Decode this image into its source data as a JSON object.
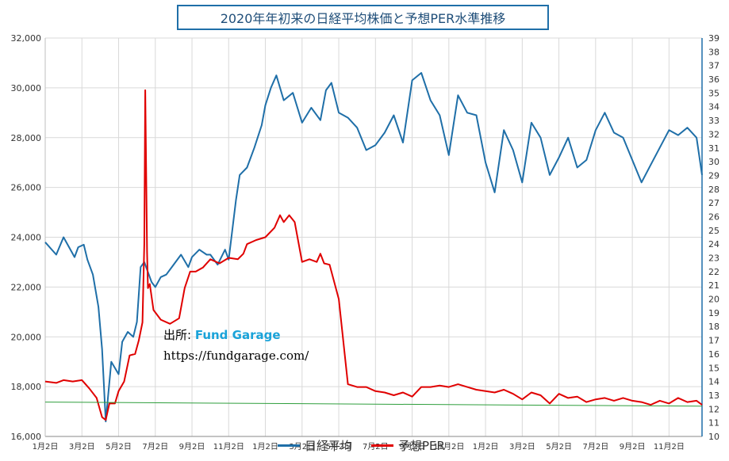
{
  "chart_data": {
    "type": "line",
    "title": "2020年年初来の日経平均株価と予想PER水準推移",
    "colors": {
      "nikkei": "#1f6fa8",
      "per": "#e00000",
      "trend": "#2e9e3c",
      "grid": "#d9d9d9"
    },
    "x_tick_labels": [
      "1月2日",
      "3月2日",
      "5月2日",
      "7月2日",
      "9月2日",
      "11月2日",
      "1月2日",
      "3月2日",
      "5月2日",
      "7月2日",
      "9月2日",
      "11月2日",
      "1月2日",
      "3月2日",
      "5月2日",
      "7月2日",
      "9月2日",
      "11月2日"
    ],
    "y_left": {
      "min": 16000,
      "max": 32000,
      "step": 2000,
      "tick_labels": [
        "16,000",
        "18,000",
        "20,000",
        "22,000",
        "24,000",
        "26,000",
        "28,000",
        "30,000",
        "32,000"
      ]
    },
    "y_right": {
      "min": 10,
      "max": 39,
      "step": 1,
      "tick_labels": [
        "10",
        "11",
        "12",
        "13",
        "14",
        "15",
        "16",
        "17",
        "18",
        "19",
        "20",
        "21",
        "22",
        "23",
        "24",
        "25",
        "26",
        "27",
        "28",
        "29",
        "30",
        "31",
        "32",
        "33",
        "34",
        "35",
        "36",
        "37",
        "38",
        "39"
      ]
    },
    "series": [
      {
        "name": "日経平均",
        "axis": "left",
        "color": "#1f6fa8",
        "x": [
          0,
          0.6,
          1,
          1.3,
          1.6,
          1.8,
          2.1,
          2.3,
          2.6,
          2.9,
          3.1,
          3.3,
          3.6,
          4,
          4.2,
          4.5,
          4.8,
          5,
          5.2,
          5.4,
          5.8,
          6,
          6.3,
          6.6,
          7,
          7.4,
          7.8,
          8,
          8.4,
          8.8,
          9,
          9.4,
          9.8,
          10,
          10.4,
          10.6,
          11,
          11.4,
          11.8,
          12,
          12.3,
          12.6,
          13,
          13.5,
          14,
          14.5,
          15,
          15.3,
          15.6,
          16,
          16.5,
          17,
          17.5,
          18,
          18.5,
          19,
          19.5,
          20,
          20.5,
          21,
          21.5,
          22,
          22.5,
          23,
          23.5,
          24,
          24.5,
          25,
          25.5,
          26,
          26.5,
          27,
          27.5,
          28,
          28.5,
          29,
          29.5,
          30,
          30.5,
          31,
          31.5,
          32,
          32.5,
          33,
          33.5,
          34,
          34.5,
          35,
          35.5,
          35.8
        ],
        "y": [
          23800,
          23300,
          24000,
          23600,
          23200,
          23600,
          23700,
          23100,
          22500,
          21200,
          19500,
          16600,
          19000,
          18500,
          19800,
          20200,
          20000,
          20600,
          22800,
          23000,
          22200,
          22000,
          22400,
          22500,
          22900,
          23300,
          22800,
          23200,
          23500,
          23300,
          23300,
          22900,
          23500,
          23100,
          25500,
          26500,
          26800,
          27600,
          28500,
          29300,
          30000,
          30500,
          29500,
          29800,
          28600,
          29200,
          28700,
          29900,
          30200,
          29000,
          28800,
          28400,
          27500,
          27700,
          28200,
          28900,
          27800,
          30300,
          30600,
          29500,
          28900,
          27300,
          29700,
          29000,
          28900,
          27000,
          25800,
          28300,
          27500,
          26200,
          28600,
          28000,
          26500,
          27200,
          28000,
          26800,
          27100,
          28300,
          29000,
          28200,
          28000,
          27100,
          26200,
          26900,
          27600,
          28300,
          28100,
          28400,
          28000,
          26500
        ]
      },
      {
        "name": "予想PER",
        "axis": "right",
        "color": "#e00000",
        "x": [
          0,
          0.6,
          1,
          1.5,
          2,
          2.4,
          2.8,
          3.1,
          3.3,
          3.5,
          3.8,
          4,
          4.3,
          4.6,
          4.9,
          5.1,
          5.3,
          5.4,
          5.45,
          5.55,
          5.6,
          5.7,
          5.9,
          6.3,
          6.8,
          7.3,
          7.6,
          7.9,
          8.2,
          8.6,
          9,
          9.5,
          10,
          10.5,
          10.8,
          11,
          11.5,
          12,
          12.5,
          12.8,
          13,
          13.3,
          13.6,
          14,
          14.4,
          14.8,
          15,
          15.2,
          15.5,
          16,
          16.5,
          17,
          17.5,
          18,
          18.5,
          19,
          19.5,
          20,
          20.5,
          21,
          21.5,
          22,
          22.5,
          23,
          23.5,
          24,
          24.5,
          25,
          25.5,
          26,
          26.5,
          27,
          27.5,
          28,
          28.5,
          29,
          29.5,
          30,
          30.5,
          31,
          31.5,
          32,
          32.5,
          33,
          33.5,
          34,
          34.5,
          35,
          35.5,
          35.8
        ],
        "y": [
          14.0,
          13.9,
          14.1,
          14.0,
          14.1,
          13.5,
          12.8,
          11.4,
          11.2,
          12.4,
          12.4,
          13.3,
          14.0,
          15.9,
          16.0,
          17.0,
          18.3,
          24.0,
          35.2,
          23.4,
          20.8,
          21.1,
          19.2,
          18.5,
          18.2,
          18.6,
          20.8,
          22.0,
          22.0,
          22.3,
          22.9,
          22.6,
          23.0,
          22.9,
          23.3,
          24.0,
          24.3,
          24.5,
          25.2,
          26.1,
          25.6,
          26.1,
          25.6,
          22.7,
          22.9,
          22.7,
          23.3,
          22.6,
          22.5,
          20.0,
          13.8,
          13.6,
          13.6,
          13.3,
          13.2,
          13.0,
          13.2,
          12.9,
          13.6,
          13.6,
          13.7,
          13.6,
          13.8,
          13.6,
          13.4,
          13.3,
          13.2,
          13.4,
          13.1,
          12.7,
          13.2,
          13.0,
          12.4,
          13.1,
          12.8,
          12.9,
          12.5,
          12.7,
          12.8,
          12.6,
          12.8,
          12.6,
          12.5,
          12.3,
          12.6,
          12.4,
          12.8,
          12.5,
          12.6,
          12.3
        ]
      },
      {
        "name": "",
        "axis": "right",
        "color": "#2e9e3c",
        "x": [
          0,
          35.8
        ],
        "y": [
          12.5,
          12.2
        ]
      }
    ]
  },
  "source": {
    "label": "出所: ",
    "name": "Fund Garage",
    "url": "https://fundgarage.com/"
  },
  "legend": [
    {
      "label": "日経平均",
      "color": "#1f6fa8"
    },
    {
      "label": "予想PER",
      "color": "#e00000"
    }
  ]
}
